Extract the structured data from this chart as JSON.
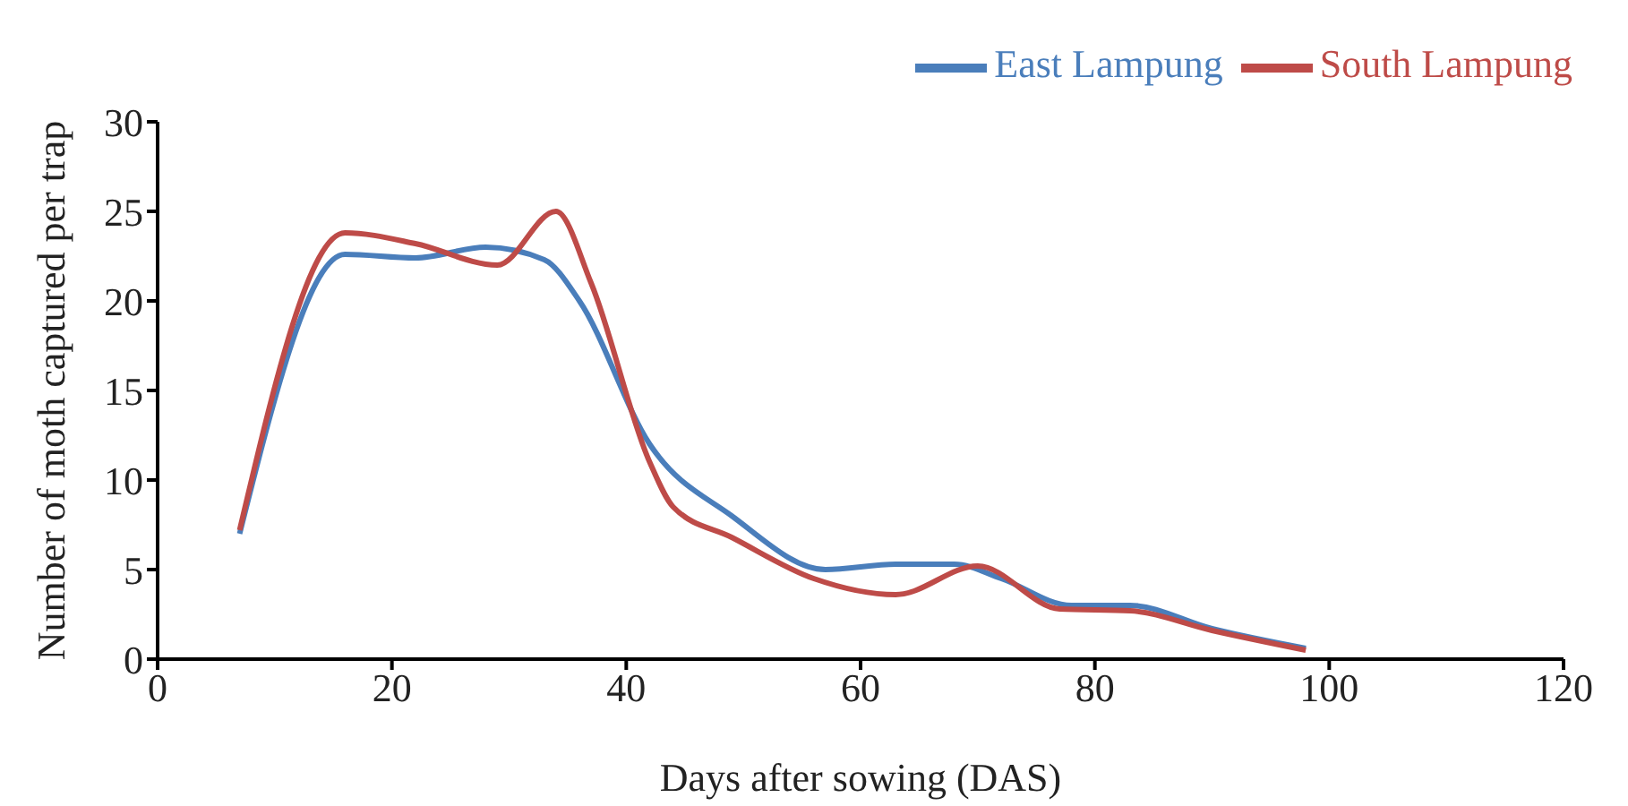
{
  "chart_data": {
    "type": "line",
    "xlabel": "Days after sowing (DAS)",
    "ylabel": "Number of moth captured per trap",
    "xlim": [
      0,
      120
    ],
    "xticks": [
      0,
      20,
      40,
      60,
      80,
      100,
      120
    ],
    "ylim": [
      0,
      30
    ],
    "yticks": [
      0,
      5,
      10,
      15,
      20,
      25,
      30
    ],
    "grid": false,
    "legend": "top right",
    "marker": "none",
    "line_style": "solid",
    "series": [
      {
        "name": "East Lampung",
        "color": "#4a7ebb",
        "x": [
          7,
          16,
          22,
          28,
          33,
          36,
          42,
          49,
          57,
          63,
          68,
          72,
          78,
          83,
          90,
          98
        ],
        "values": [
          7,
          22.6,
          22.4,
          23,
          22.3,
          20,
          12,
          8,
          5,
          5.3,
          5.3,
          4.5,
          3,
          3,
          1.7,
          0.6
        ]
      },
      {
        "name": "South Lampung",
        "color": "#be4b48",
        "x": [
          7,
          16,
          22,
          29,
          34,
          37,
          42,
          44,
          49,
          56,
          63,
          70,
          77,
          83,
          90,
          98
        ],
        "values": [
          7.2,
          23.8,
          23.2,
          22,
          25,
          21,
          11,
          8.5,
          6.8,
          4.5,
          3.6,
          5.2,
          2.8,
          2.7,
          1.6,
          0.5
        ]
      }
    ]
  }
}
